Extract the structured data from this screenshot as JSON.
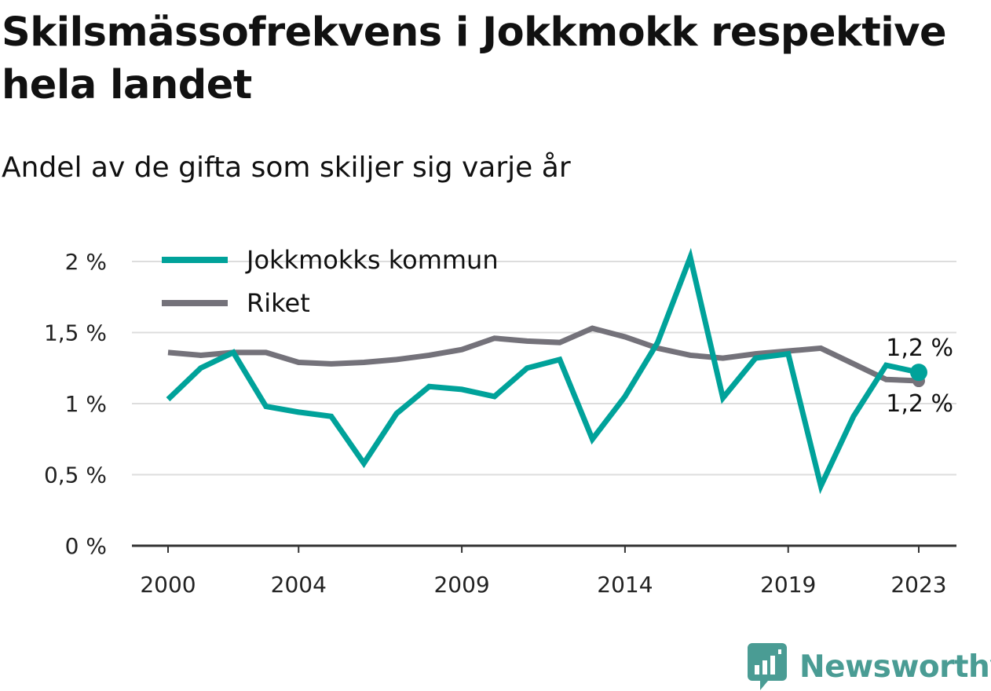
{
  "header": {
    "title": "Skilsmässofrekvens i Jokkmokk respektive hela landet",
    "subtitle": "Andel av de gifta som skiljer sig varje år"
  },
  "brand": {
    "name": "Newsworthy",
    "icon": "bar-chart-icon",
    "color": "#4a9c94"
  },
  "chart_data": {
    "type": "line",
    "title": "Skilsmässofrekvens i Jokkmokk respektive hela landet",
    "subtitle": "Andel av de gifta som skiljer sig varje år",
    "x": [
      2000,
      2001,
      2002,
      2003,
      2004,
      2005,
      2006,
      2007,
      2008,
      2009,
      2010,
      2011,
      2012,
      2013,
      2014,
      2015,
      2016,
      2017,
      2018,
      2019,
      2020,
      2021,
      2022,
      2023
    ],
    "x_ticks": [
      2000,
      2004,
      2009,
      2014,
      2019,
      2023
    ],
    "x_tick_labels": [
      "2000",
      "2004",
      "2009",
      "2014",
      "2019",
      "2023"
    ],
    "ylim": [
      0,
      2
    ],
    "y_ticks": [
      0,
      0.5,
      1,
      1.5,
      2
    ],
    "y_tick_labels": [
      "0 %",
      "0,5 %",
      "1 %",
      "1,5 %",
      "2 %"
    ],
    "grid": true,
    "legend_position": "top-left",
    "series": [
      {
        "name": "Jokkmokks kommun",
        "color": "#00a29a",
        "values": [
          1.03,
          1.25,
          1.36,
          0.98,
          0.94,
          0.91,
          0.58,
          0.93,
          1.12,
          1.1,
          1.05,
          1.25,
          1.31,
          0.75,
          1.05,
          1.43,
          2.03,
          1.04,
          1.32,
          1.35,
          0.42,
          0.91,
          1.27,
          1.22
        ],
        "end_label": "1,2 %"
      },
      {
        "name": "Riket",
        "color": "#74727a",
        "values": [
          1.36,
          1.34,
          1.36,
          1.36,
          1.29,
          1.28,
          1.29,
          1.31,
          1.34,
          1.38,
          1.46,
          1.44,
          1.43,
          1.53,
          1.47,
          1.39,
          1.34,
          1.32,
          1.35,
          1.37,
          1.39,
          1.28,
          1.17,
          1.16
        ],
        "end_label": "1,2 %"
      }
    ]
  }
}
